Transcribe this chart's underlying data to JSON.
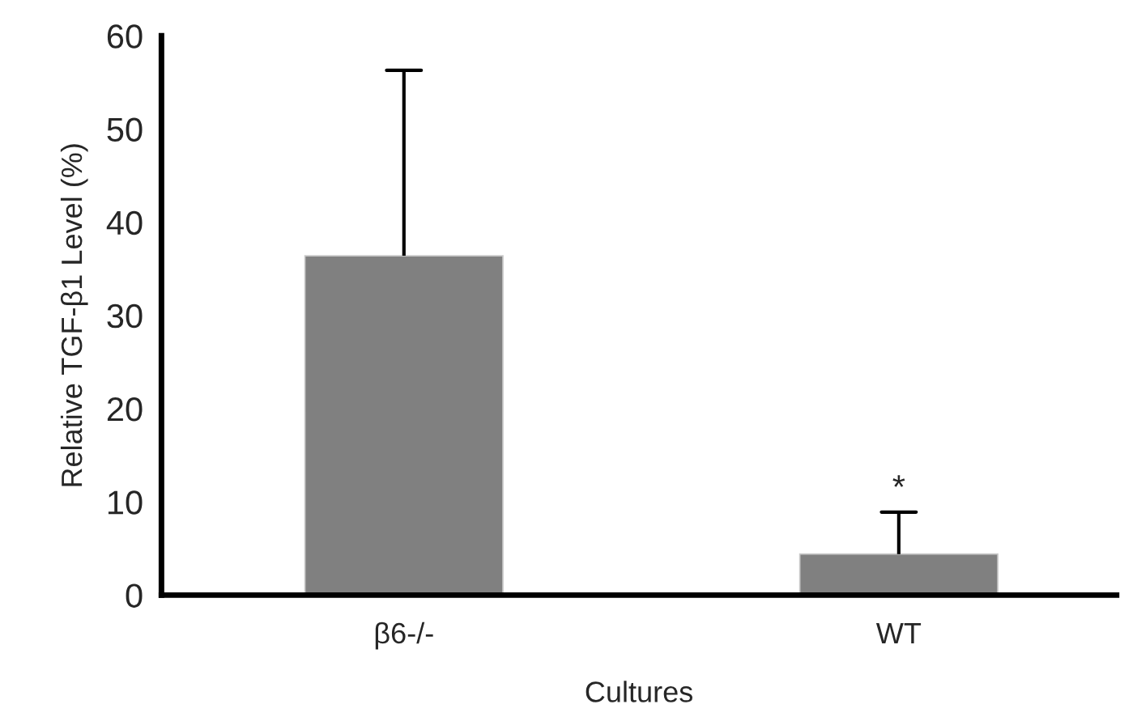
{
  "chart_data": {
    "type": "bar",
    "xlabel": "Cultures",
    "ylabel": "Relative TGF-β1 Level (%)",
    "categories": [
      "β6-/-",
      "WT"
    ],
    "values": [
      36.4,
      4.4
    ],
    "errors": [
      [
        36.4,
        56.3
      ],
      [
        4.4,
        8.9
      ]
    ],
    "color": "#808080",
    "ylim": [
      0,
      60
    ],
    "yticks": [
      0,
      10,
      20,
      30,
      40,
      50,
      60
    ],
    "annotations": [
      {
        "text": "*",
        "x": "WT",
        "y": 8.9
      }
    ],
    "grid": false,
    "legend": false
  }
}
